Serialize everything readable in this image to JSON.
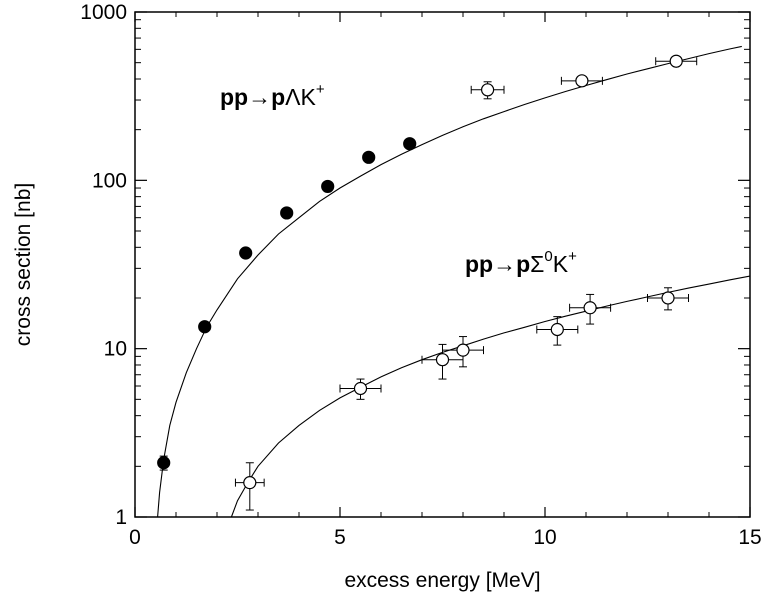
{
  "chart_data": {
    "type": "scatter",
    "title": "",
    "xlabel": "excess energy [MeV]",
    "ylabel": "cross section [nb]",
    "xlim": [
      0,
      15
    ],
    "ylim": [
      1,
      1000
    ],
    "yscale": "log",
    "grid": false,
    "legend": "none",
    "xticks": [
      {
        "value": 0,
        "label": "0"
      },
      {
        "value": 5,
        "label": "5"
      },
      {
        "value": 10,
        "label": "10"
      },
      {
        "value": 15,
        "label": "15"
      }
    ],
    "yticks": [
      {
        "value": 1,
        "label": "1"
      },
      {
        "value": 10,
        "label": "10"
      },
      {
        "value": 100,
        "label": "100"
      },
      {
        "value": 1000,
        "label": "1000"
      }
    ],
    "series": [
      {
        "id": "lambda",
        "label_parts": {
          "bold": "pp",
          "arrow": "→",
          "bold2": "p",
          "rest": "ΛK",
          "sup_mid": "",
          "rest2": "",
          "sup": "+"
        },
        "marker": "filled-circle",
        "points": [
          {
            "x": 0.7,
            "y": 2.1,
            "yerr": [
              0.2,
              0.2
            ],
            "xerr": 0
          },
          {
            "x": 1.7,
            "y": 13.5,
            "yerr": [
              0.6,
              0.6
            ],
            "xerr": 0
          },
          {
            "x": 2.7,
            "y": 37,
            "yerr": [
              1.5,
              1.5
            ],
            "xerr": 0
          },
          {
            "x": 3.7,
            "y": 64,
            "yerr": [
              2.5,
              2.5
            ],
            "xerr": 0
          },
          {
            "x": 4.7,
            "y": 92,
            "yerr": [
              3,
              3
            ],
            "xerr": 0
          },
          {
            "x": 5.7,
            "y": 137,
            "yerr": [
              5,
              5
            ],
            "xerr": 0
          },
          {
            "x": 6.7,
            "y": 165,
            "yerr": [
              6,
              6
            ],
            "xerr": 0
          },
          {
            "x": 8.6,
            "y": 345,
            "yerr": [
              40,
              40
            ],
            "xerr": 0.4,
            "open": true
          },
          {
            "x": 10.9,
            "y": 390,
            "yerr": [
              20,
              20
            ],
            "xerr": 0.5,
            "open": true
          },
          {
            "x": 13.2,
            "y": 510,
            "yerr": [
              30,
              30
            ],
            "xerr": 0.5,
            "open": true
          }
        ],
        "curve": [
          [
            0.55,
            1
          ],
          [
            0.6,
            1.4
          ],
          [
            0.7,
            2.2
          ],
          [
            0.85,
            3.5
          ],
          [
            1.0,
            4.8
          ],
          [
            1.25,
            7.2
          ],
          [
            1.5,
            10
          ],
          [
            1.75,
            13.5
          ],
          [
            2.0,
            17
          ],
          [
            2.5,
            26
          ],
          [
            3.0,
            36
          ],
          [
            3.5,
            48
          ],
          [
            4.0,
            60
          ],
          [
            4.5,
            75
          ],
          [
            5.0,
            90
          ],
          [
            5.5,
            106
          ],
          [
            6.0,
            124
          ],
          [
            6.5,
            143
          ],
          [
            7.0,
            163
          ],
          [
            7.5,
            185
          ],
          [
            8.0,
            208
          ],
          [
            8.5,
            232
          ],
          [
            9.0,
            256
          ],
          [
            9.5,
            282
          ],
          [
            10.0,
            309
          ],
          [
            10.5,
            337
          ],
          [
            11.0,
            366
          ],
          [
            11.5,
            396
          ],
          [
            12.0,
            428
          ],
          [
            12.5,
            460
          ],
          [
            13.0,
            494
          ],
          [
            13.5,
            529
          ],
          [
            14.0,
            566
          ],
          [
            14.5,
            603
          ],
          [
            14.8,
            625
          ]
        ]
      },
      {
        "id": "sigma",
        "label_parts": {
          "bold": "pp",
          "arrow": "→",
          "bold2": "p",
          "rest": "Σ",
          "sup_mid": "0",
          "rest2": "K",
          "sup": "+"
        },
        "marker": "open-circle",
        "points": [
          {
            "x": 2.8,
            "y": 1.6,
            "yerr": [
              0.5,
              0.5
            ],
            "xerr": 0.35
          },
          {
            "x": 5.5,
            "y": 5.8,
            "yerr": [
              0.8,
              0.8
            ],
            "xerr": 0.5
          },
          {
            "x": 7.5,
            "y": 8.6,
            "yerr": [
              2.0,
              2.0
            ],
            "xerr": 0.5
          },
          {
            "x": 8.0,
            "y": 9.8,
            "yerr": [
              2.0,
              2.0
            ],
            "xerr": 0.5
          },
          {
            "x": 10.3,
            "y": 13,
            "yerr": [
              2.5,
              2.5
            ],
            "xerr": 0.5
          },
          {
            "x": 11.1,
            "y": 17.5,
            "yerr": [
              3.5,
              3.5
            ],
            "xerr": 0.5
          },
          {
            "x": 13.0,
            "y": 20,
            "yerr": [
              3,
              3
            ],
            "xerr": 0.5
          }
        ],
        "curve": [
          [
            2.35,
            1
          ],
          [
            2.5,
            1.25
          ],
          [
            2.75,
            1.6
          ],
          [
            3.0,
            2.0
          ],
          [
            3.5,
            2.75
          ],
          [
            4.0,
            3.5
          ],
          [
            4.5,
            4.3
          ],
          [
            5.0,
            5.1
          ],
          [
            5.5,
            5.9
          ],
          [
            6.0,
            6.8
          ],
          [
            6.5,
            7.7
          ],
          [
            7.0,
            8.6
          ],
          [
            7.5,
            9.5
          ],
          [
            8.0,
            10.4
          ],
          [
            8.5,
            11.4
          ],
          [
            9.0,
            12.4
          ],
          [
            9.5,
            13.4
          ],
          [
            10.0,
            14.5
          ],
          [
            10.5,
            15.6
          ],
          [
            11.0,
            16.7
          ],
          [
            11.5,
            17.9
          ],
          [
            12.0,
            19.1
          ],
          [
            12.5,
            20.3
          ],
          [
            13.0,
            21.6
          ],
          [
            13.5,
            22.9
          ],
          [
            14.0,
            24.2
          ],
          [
            14.5,
            25.6
          ],
          [
            15.0,
            27
          ]
        ]
      }
    ]
  }
}
